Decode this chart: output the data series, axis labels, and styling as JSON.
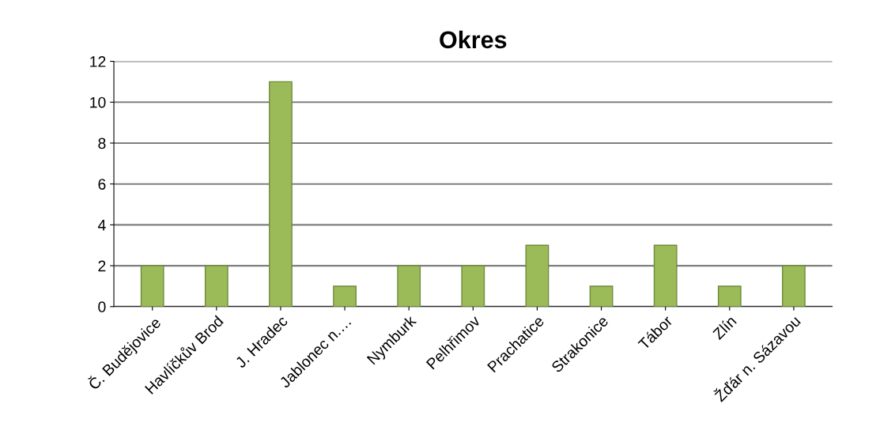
{
  "chart_data": {
    "type": "bar",
    "title": "Okres",
    "categories": [
      "Č. Budějovice",
      "Havlíčkův Brod",
      "J. Hradec",
      "Jablonec n.…",
      "Nymburk",
      "Pelhřimov",
      "Prachatice",
      "Strakonice",
      "Tábor",
      "Zlín",
      "Žďár n. Sázavou"
    ],
    "values": [
      2,
      2,
      11,
      1,
      2,
      2,
      3,
      1,
      3,
      1,
      2
    ],
    "color": "#9bbb59",
    "ylim": [
      0,
      12
    ],
    "yticks": [
      0,
      2,
      4,
      6,
      8,
      10,
      12
    ],
    "grid": "y"
  }
}
